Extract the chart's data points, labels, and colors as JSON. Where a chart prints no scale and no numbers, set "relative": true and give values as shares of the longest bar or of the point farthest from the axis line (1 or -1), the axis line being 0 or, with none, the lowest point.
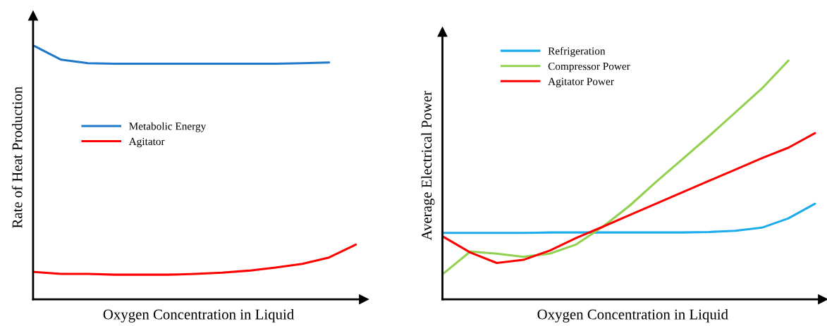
{
  "chart_data": [
    {
      "type": "line",
      "relative": true,
      "xlabel": "Oxygen Concentration in Liquid",
      "ylabel": "Rate of Heat Production",
      "legend": "left",
      "grid": false,
      "tick_labels": false,
      "categories": [
        null,
        null,
        null,
        null,
        null,
        null,
        null,
        null,
        null,
        null,
        null,
        null,
        null
      ],
      "series": [
        {
          "name": "Metabolic Energy",
          "color": "#1f78c8",
          "values": [
            1.0,
            0.946,
            0.932,
            0.93,
            0.93,
            0.93,
            0.93,
            0.93,
            0.93,
            0.93,
            0.932,
            0.935,
            null
          ]
        },
        {
          "name": "Agitator",
          "color": "#ff0000",
          "values": [
            0.108,
            0.1,
            0.1,
            0.097,
            0.097,
            0.097,
            0.1,
            0.105,
            0.113,
            0.125,
            0.14,
            0.165,
            0.216
          ]
        }
      ]
    },
    {
      "type": "line",
      "relative": true,
      "xlabel": "Oxygen Concentration in Liquid",
      "ylabel": "Average Electrical Power",
      "legend": "top left",
      "grid": false,
      "tick_labels": false,
      "categories": [
        null,
        null,
        null,
        null,
        null,
        null,
        null,
        null,
        null,
        null,
        null,
        null,
        null,
        null,
        null
      ],
      "series": [
        {
          "name": "Refrigeration",
          "color": "#1cacec",
          "values": [
            0.278,
            0.278,
            0.278,
            0.278,
            0.28,
            0.28,
            0.28,
            0.28,
            0.28,
            0.28,
            0.282,
            0.287,
            0.3,
            0.339,
            0.4
          ]
        },
        {
          "name": "Compressor Power",
          "color": "#92d050",
          "values": [
            0.109,
            0.2,
            0.191,
            0.178,
            0.191,
            0.23,
            0.304,
            0.391,
            0.491,
            0.587,
            0.683,
            0.783,
            0.883,
            1.0,
            null
          ]
        },
        {
          "name": "Agitator Power",
          "color": "#ff0000",
          "values": [
            0.261,
            0.196,
            0.152,
            0.165,
            0.204,
            0.257,
            0.304,
            0.352,
            0.4,
            0.448,
            0.496,
            0.543,
            0.591,
            0.635,
            0.696
          ]
        }
      ]
    }
  ]
}
